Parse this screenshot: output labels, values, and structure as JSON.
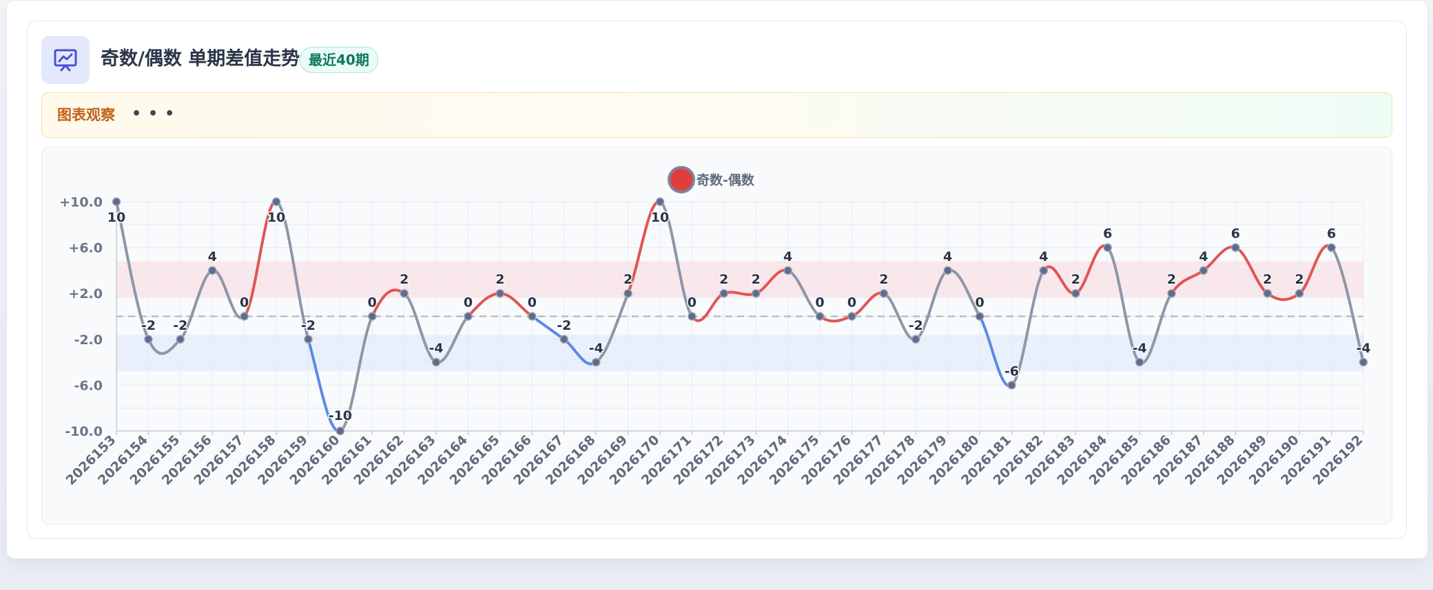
{
  "header": {
    "title": "奇数/偶数 单期差值走势",
    "badge": "最近40期",
    "icon": "presentation-chart-icon"
  },
  "observation": {
    "label": "图表观察",
    "dots": "•••"
  },
  "colors": {
    "positive": "#e05555",
    "negative": "#5b8ae6",
    "neutral": "#8d97a6",
    "point": "#5f6b8a",
    "band_positive": "#f9e3e7",
    "band_negative": "#e6edfa",
    "legend_fill": "#e23d3d",
    "legend_border": "#7c8597"
  },
  "chart_data": {
    "type": "line",
    "title": "",
    "xlabel": "",
    "ylabel": "",
    "ylim": [
      -10,
      10
    ],
    "y_ticks": [
      "+10.0",
      "+6.0",
      "+2.0",
      "-2.0",
      "-6.0",
      "-10.0"
    ],
    "y_tick_values": [
      10,
      6,
      2,
      -2,
      -6,
      -10
    ],
    "reference_line": 0,
    "bands": [
      {
        "from": 1.6,
        "to": 4.8,
        "tone": "positive"
      },
      {
        "from": -4.8,
        "to": -1.6,
        "tone": "negative"
      }
    ],
    "legend": {
      "position": "top-center"
    },
    "categories": [
      "2026153",
      "2026154",
      "2026155",
      "2026156",
      "2026157",
      "2026158",
      "2026159",
      "2026160",
      "2026161",
      "2026162",
      "2026163",
      "2026164",
      "2026165",
      "2026166",
      "2026167",
      "2026168",
      "2026169",
      "2026170",
      "2026171",
      "2026172",
      "2026173",
      "2026174",
      "2026175",
      "2026176",
      "2026177",
      "2026178",
      "2026179",
      "2026180",
      "2026181",
      "2026182",
      "2026183",
      "2026184",
      "2026185",
      "2026186",
      "2026187",
      "2026188",
      "2026189",
      "2026190",
      "2026191",
      "2026192"
    ],
    "series": [
      {
        "name": "奇数-偶数",
        "values": [
          10,
          -2,
          -2,
          4,
          0,
          10,
          -2,
          -10,
          0,
          2,
          -4,
          0,
          2,
          0,
          -2,
          -4,
          2,
          10,
          0,
          2,
          2,
          4,
          0,
          0,
          2,
          -2,
          4,
          0,
          -6,
          4,
          2,
          6,
          -4,
          2,
          4,
          6,
          2,
          2,
          6,
          -4
        ]
      }
    ]
  }
}
